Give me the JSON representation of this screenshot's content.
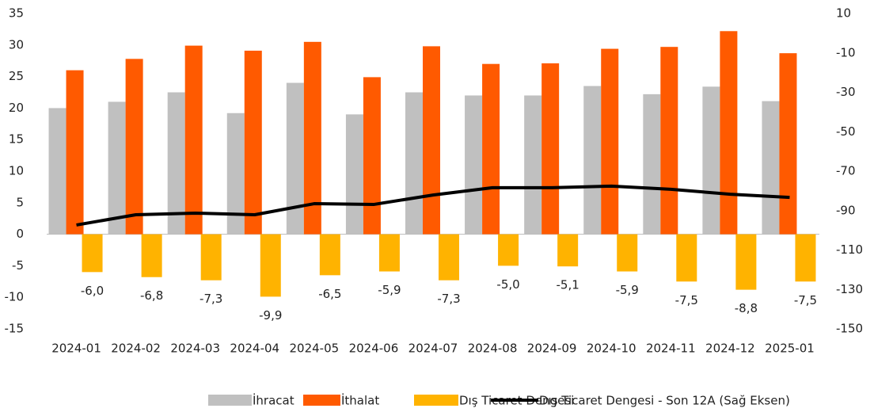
{
  "chart_data": {
    "type": "bar-line",
    "categories": [
      "2024-01",
      "2024-02",
      "2024-03",
      "2024-04",
      "2024-05",
      "2024-06",
      "2024-07",
      "2024-08",
      "2024-09",
      "2024-10",
      "2024-11",
      "2024-12",
      "2025-01"
    ],
    "series": [
      {
        "name": "İhracat",
        "color": "#c0c0c0",
        "type": "bar",
        "values": [
          20.0,
          21.0,
          22.5,
          19.2,
          24.0,
          19.0,
          22.5,
          22.0,
          22.0,
          23.5,
          22.2,
          23.4,
          21.1
        ]
      },
      {
        "name": "İthalat",
        "color": "#ff5a00",
        "type": "bar",
        "values": [
          26.0,
          27.8,
          29.9,
          29.1,
          30.5,
          24.9,
          29.8,
          27.0,
          27.1,
          29.4,
          29.7,
          32.2,
          28.7
        ]
      },
      {
        "name": "Dış Ticaret Dengesi",
        "color": "#ffb300",
        "type": "bar",
        "values": [
          -6.0,
          -6.8,
          -7.3,
          -9.9,
          -6.5,
          -5.9,
          -7.3,
          -5.0,
          -5.1,
          -5.9,
          -7.5,
          -8.8,
          -7.5
        ],
        "value_labels": [
          "-6,0",
          "-6,8",
          "-7,3",
          "-9,9",
          "-6,5",
          "-5,9",
          "-7,3",
          "-5,0",
          "-5,1",
          "-5,9",
          "-7,5",
          "-8,8",
          "-7,5"
        ]
      },
      {
        "name": "Dış Ticaret Dengesi - Son 12A (Sağ Eksen)",
        "color": "#000000",
        "type": "line",
        "axis": "y2",
        "values": [
          -97.3,
          -92.1,
          -91.3,
          -92.1,
          -86.5,
          -86.9,
          -82.1,
          -78.4,
          -78.4,
          -77.6,
          -79.2,
          -81.7,
          -83.3
        ]
      }
    ],
    "ylim": [
      -15,
      35
    ],
    "yticks": [
      -15,
      -10,
      -5,
      0,
      5,
      10,
      15,
      20,
      25,
      30,
      35
    ],
    "y2lim": [
      -150,
      10
    ],
    "y2ticks": [
      -150,
      -130,
      -110,
      -90,
      -70,
      -50,
      -30,
      -10,
      10
    ],
    "legend": "bottom"
  }
}
